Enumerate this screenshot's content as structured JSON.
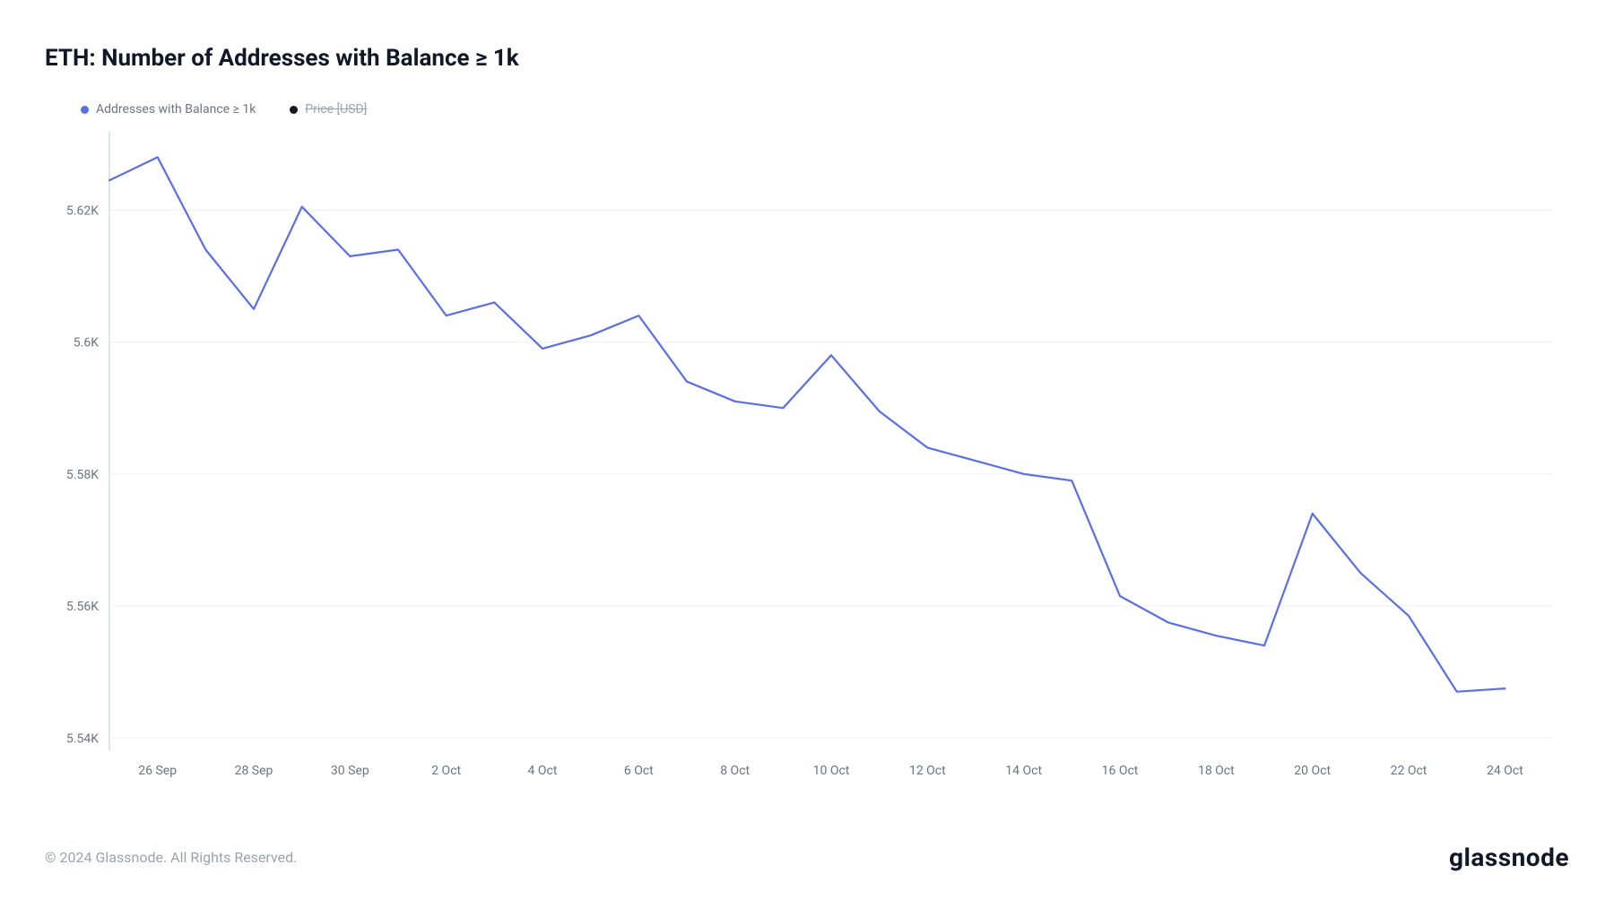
{
  "title": "ETH: Number of Addresses with Balance ≥ 1k",
  "copyright": "© 2024 Glassnode. All Rights Reserved.",
  "brand": "glassnode",
  "legend": {
    "series1": {
      "label": "Addresses with Balance ≥ 1k",
      "color": "#5a6fe6",
      "disabled": false
    },
    "series2": {
      "label": "Price [USD]",
      "color": "#111827",
      "disabled": true
    }
  },
  "chart": {
    "type": "line",
    "background_color": "#ffffff",
    "grid_color": "#eef1f5",
    "axis_color": "#cbd5e1",
    "axis_label_color": "#6b7280",
    "axis_label_fontsize": 14,
    "line_color": "#5a6fe6",
    "line_width": 2.2,
    "y": {
      "min": 5.538,
      "max": 5.632,
      "ticks": [
        5.54,
        5.56,
        5.58,
        5.6,
        5.62
      ],
      "tick_labels": [
        "5.54K",
        "5.56K",
        "5.58K",
        "5.6K",
        "5.62K"
      ]
    },
    "x": {
      "domain_min": 0,
      "domain_max": 30,
      "ticks": [
        1,
        3,
        5,
        7,
        9,
        11,
        13,
        15,
        17,
        19,
        21,
        23,
        25,
        27,
        29
      ],
      "tick_labels": [
        "26 Sep",
        "28 Sep",
        "30 Sep",
        "2 Oct",
        "4 Oct",
        "6 Oct",
        "8 Oct",
        "10 Oct",
        "12 Oct",
        "14 Oct",
        "16 Oct",
        "18 Oct",
        "20 Oct",
        "22 Oct",
        "24 Oct"
      ]
    },
    "series": [
      {
        "x": 0,
        "y": 5.6245
      },
      {
        "x": 1,
        "y": 5.628
      },
      {
        "x": 2,
        "y": 5.614
      },
      {
        "x": 3,
        "y": 5.605
      },
      {
        "x": 4,
        "y": 5.6205
      },
      {
        "x": 5,
        "y": 5.613
      },
      {
        "x": 6,
        "y": 5.614
      },
      {
        "x": 7,
        "y": 5.604
      },
      {
        "x": 8,
        "y": 5.606
      },
      {
        "x": 9,
        "y": 5.599
      },
      {
        "x": 10,
        "y": 5.601
      },
      {
        "x": 11,
        "y": 5.604
      },
      {
        "x": 12,
        "y": 5.594
      },
      {
        "x": 13,
        "y": 5.591
      },
      {
        "x": 14,
        "y": 5.59
      },
      {
        "x": 15,
        "y": 5.598
      },
      {
        "x": 16,
        "y": 5.5895
      },
      {
        "x": 17,
        "y": 5.584
      },
      {
        "x": 18,
        "y": 5.582
      },
      {
        "x": 19,
        "y": 5.58
      },
      {
        "x": 20,
        "y": 5.579
      },
      {
        "x": 21,
        "y": 5.5615
      },
      {
        "x": 22,
        "y": 5.5575
      },
      {
        "x": 23,
        "y": 5.5555
      },
      {
        "x": 24,
        "y": 5.554
      },
      {
        "x": 25,
        "y": 5.574
      },
      {
        "x": 26,
        "y": 5.565
      },
      {
        "x": 27,
        "y": 5.5585
      },
      {
        "x": 28,
        "y": 5.547
      },
      {
        "x": 29,
        "y": 5.5475
      }
    ]
  }
}
